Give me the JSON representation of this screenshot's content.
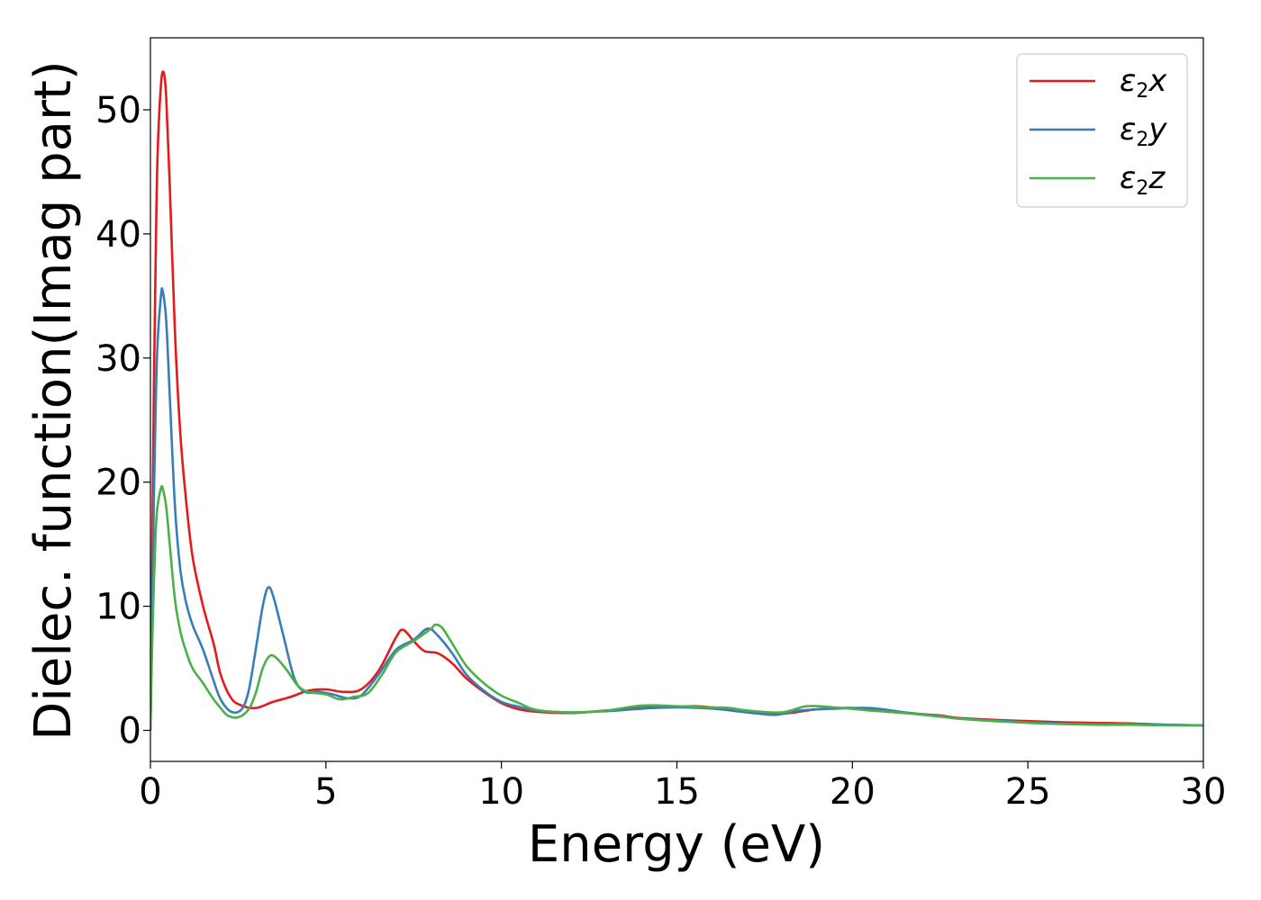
{
  "chart_data": {
    "type": "line",
    "title": "",
    "xlabel": "Energy (eV)",
    "ylabel": "Dielec. function(Imag part)",
    "xlim": [
      0,
      30
    ],
    "ylim": [
      -2.5,
      55.8
    ],
    "xticks": [
      0,
      5,
      10,
      15,
      20,
      25,
      30
    ],
    "yticks": [
      0,
      10,
      20,
      30,
      40,
      50
    ],
    "grid": false,
    "legend_position": "top-right",
    "series": [
      {
        "name": "ε2x",
        "legend": {
          "base": "ε",
          "sub": "2",
          "suffix": "x"
        },
        "color": "#e41a1c",
        "points": [
          [
            0,
            0
          ],
          [
            0.05,
            14
          ],
          [
            0.1,
            28
          ],
          [
            0.15,
            38
          ],
          [
            0.2,
            46
          ],
          [
            0.3,
            52
          ],
          [
            0.38,
            53
          ],
          [
            0.45,
            51
          ],
          [
            0.55,
            44
          ],
          [
            0.7,
            32
          ],
          [
            0.85,
            24
          ],
          [
            1.0,
            19
          ],
          [
            1.2,
            14
          ],
          [
            1.5,
            10
          ],
          [
            1.8,
            7
          ],
          [
            2.0,
            4.5
          ],
          [
            2.3,
            2.6
          ],
          [
            2.6,
            2.0
          ],
          [
            3.0,
            1.8
          ],
          [
            3.5,
            2.3
          ],
          [
            4.0,
            2.7
          ],
          [
            4.5,
            3.2
          ],
          [
            5.0,
            3.3
          ],
          [
            5.5,
            3.1
          ],
          [
            6.0,
            3.3
          ],
          [
            6.5,
            4.8
          ],
          [
            7.0,
            7.5
          ],
          [
            7.2,
            8.1
          ],
          [
            7.5,
            7.2
          ],
          [
            7.8,
            6.4
          ],
          [
            8.2,
            6.2
          ],
          [
            8.6,
            5.4
          ],
          [
            9.0,
            4.2
          ],
          [
            9.5,
            3.1
          ],
          [
            10.0,
            2.2
          ],
          [
            10.5,
            1.7
          ],
          [
            11.0,
            1.5
          ],
          [
            12.0,
            1.4
          ],
          [
            13.0,
            1.6
          ],
          [
            14.0,
            1.8
          ],
          [
            15.0,
            1.9
          ],
          [
            15.5,
            1.95
          ],
          [
            16.0,
            1.85
          ],
          [
            17.0,
            1.5
          ],
          [
            18.0,
            1.35
          ],
          [
            19.0,
            1.7
          ],
          [
            20.0,
            1.8
          ],
          [
            21.0,
            1.5
          ],
          [
            22.0,
            1.3
          ],
          [
            22.5,
            1.2
          ],
          [
            23.0,
            1.0
          ],
          [
            24.0,
            0.85
          ],
          [
            25.0,
            0.75
          ],
          [
            26.0,
            0.65
          ],
          [
            27.0,
            0.6
          ],
          [
            28.0,
            0.55
          ],
          [
            29.0,
            0.45
          ],
          [
            30.0,
            0.4
          ]
        ]
      },
      {
        "name": "ε2y",
        "legend": {
          "base": "ε",
          "sub": "2",
          "suffix": "y"
        },
        "color": "#377eb8",
        "points": [
          [
            0,
            0
          ],
          [
            0.05,
            10
          ],
          [
            0.1,
            19
          ],
          [
            0.15,
            26
          ],
          [
            0.2,
            31
          ],
          [
            0.3,
            35
          ],
          [
            0.35,
            35.4
          ],
          [
            0.45,
            33
          ],
          [
            0.55,
            27
          ],
          [
            0.7,
            18
          ],
          [
            0.85,
            13
          ],
          [
            1.0,
            10.5
          ],
          [
            1.2,
            8.5
          ],
          [
            1.5,
            6.5
          ],
          [
            1.8,
            4
          ],
          [
            2.0,
            2.5
          ],
          [
            2.3,
            1.5
          ],
          [
            2.6,
            1.7
          ],
          [
            2.8,
            3.2
          ],
          [
            3.0,
            6.5
          ],
          [
            3.2,
            10
          ],
          [
            3.35,
            11.5
          ],
          [
            3.5,
            10.8
          ],
          [
            3.8,
            7.5
          ],
          [
            4.1,
            4.2
          ],
          [
            4.4,
            3.1
          ],
          [
            4.8,
            3.1
          ],
          [
            5.2,
            2.9
          ],
          [
            5.6,
            2.6
          ],
          [
            6.0,
            2.8
          ],
          [
            6.5,
            4.5
          ],
          [
            7.0,
            6.5
          ],
          [
            7.5,
            7.3
          ],
          [
            7.9,
            8.2
          ],
          [
            8.2,
            7.6
          ],
          [
            8.6,
            6.2
          ],
          [
            9.0,
            4.5
          ],
          [
            9.5,
            3.2
          ],
          [
            10.0,
            2.3
          ],
          [
            10.5,
            1.9
          ],
          [
            11.0,
            1.6
          ],
          [
            12.0,
            1.45
          ],
          [
            13.0,
            1.55
          ],
          [
            14.0,
            1.75
          ],
          [
            15.0,
            1.85
          ],
          [
            16.0,
            1.75
          ],
          [
            17.0,
            1.45
          ],
          [
            17.8,
            1.25
          ],
          [
            18.5,
            1.6
          ],
          [
            19.5,
            1.75
          ],
          [
            20.5,
            1.8
          ],
          [
            21.5,
            1.45
          ],
          [
            22.5,
            1.15
          ],
          [
            23.0,
            0.95
          ],
          [
            24.0,
            0.8
          ],
          [
            25.0,
            0.65
          ],
          [
            26.0,
            0.55
          ],
          [
            27.0,
            0.5
          ],
          [
            28.0,
            0.5
          ],
          [
            29.0,
            0.45
          ],
          [
            30.0,
            0.4
          ]
        ]
      },
      {
        "name": "ε2z",
        "legend": {
          "base": "ε",
          "sub": "2",
          "suffix": "z"
        },
        "color": "#4daf4a",
        "points": [
          [
            0,
            0
          ],
          [
            0.05,
            7
          ],
          [
            0.1,
            12
          ],
          [
            0.15,
            16
          ],
          [
            0.2,
            18
          ],
          [
            0.3,
            19.5
          ],
          [
            0.35,
            19.5
          ],
          [
            0.45,
            18
          ],
          [
            0.55,
            15
          ],
          [
            0.7,
            10.5
          ],
          [
            0.85,
            8
          ],
          [
            1.0,
            6.5
          ],
          [
            1.2,
            5
          ],
          [
            1.5,
            3.8
          ],
          [
            1.8,
            2.5
          ],
          [
            2.0,
            1.8
          ],
          [
            2.2,
            1.2
          ],
          [
            2.5,
            1.05
          ],
          [
            2.8,
            1.7
          ],
          [
            3.0,
            3.0
          ],
          [
            3.2,
            5.0
          ],
          [
            3.4,
            6.0
          ],
          [
            3.6,
            5.8
          ],
          [
            3.9,
            4.8
          ],
          [
            4.2,
            3.6
          ],
          [
            4.5,
            3.1
          ],
          [
            5.0,
            2.9
          ],
          [
            5.4,
            2.5
          ],
          [
            5.8,
            2.7
          ],
          [
            6.2,
            3.0
          ],
          [
            6.6,
            4.5
          ],
          [
            7.0,
            6.3
          ],
          [
            7.5,
            7.2
          ],
          [
            8.0,
            8.2
          ],
          [
            8.1,
            8.5
          ],
          [
            8.3,
            8.3
          ],
          [
            8.6,
            7.0
          ],
          [
            9.0,
            5.2
          ],
          [
            9.5,
            3.8
          ],
          [
            10.0,
            2.8
          ],
          [
            10.5,
            2.2
          ],
          [
            11.0,
            1.65
          ],
          [
            12.0,
            1.45
          ],
          [
            13.0,
            1.6
          ],
          [
            14.0,
            2.0
          ],
          [
            15.0,
            1.95
          ],
          [
            16.0,
            1.85
          ],
          [
            16.5,
            1.8
          ],
          [
            17.0,
            1.6
          ],
          [
            18.0,
            1.45
          ],
          [
            18.7,
            1.95
          ],
          [
            19.5,
            1.85
          ],
          [
            20.5,
            1.6
          ],
          [
            21.5,
            1.4
          ],
          [
            22.5,
            1.1
          ],
          [
            23.0,
            0.95
          ],
          [
            24.0,
            0.75
          ],
          [
            25.0,
            0.6
          ],
          [
            26.0,
            0.5
          ],
          [
            27.0,
            0.45
          ],
          [
            28.0,
            0.45
          ],
          [
            29.0,
            0.4
          ],
          [
            30.0,
            0.4
          ]
        ]
      }
    ]
  }
}
